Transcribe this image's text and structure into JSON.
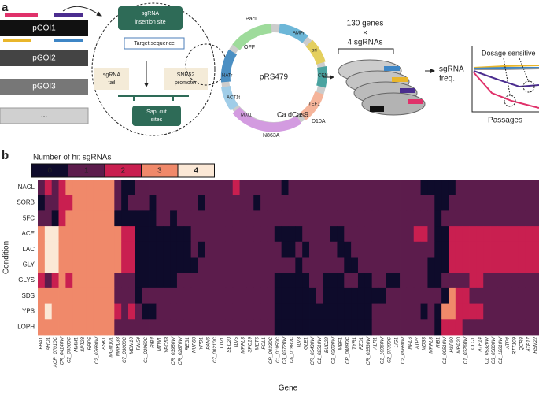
{
  "panel_a": {
    "label": "a",
    "plasmids": [
      "pGOI1",
      "pGOI2",
      "pGOI3",
      "..."
    ],
    "sgrna_site": [
      "sgRNA",
      "insertion site"
    ],
    "target": "Target sequence",
    "tail": [
      "sgRNA",
      "tail"
    ],
    "promoter": [
      "SNR52",
      "promoter"
    ],
    "cut": [
      "SapI cut",
      "sites"
    ],
    "plasmid_name": "pRS479",
    "features": [
      "PacI",
      "OFF",
      "AMPr",
      "ori",
      "CEN",
      "TEF1",
      "NATr",
      "ACT1t",
      "MXI1",
      "Ca dCas9",
      "D10A",
      "N863A"
    ],
    "pool": [
      "130 genes",
      "×",
      "4 sgRNAs"
    ],
    "y_label": [
      "sgRNA",
      "freq."
    ],
    "x_label": "Passages",
    "annotation": "Dosage sensitive"
  },
  "chart_data": {
    "type": "heatmap",
    "label": "b",
    "legend_title": "Number of hit sgRNAs",
    "levels": [
      0,
      1,
      2,
      3,
      4
    ],
    "colors": [
      "#0e0b2b",
      "#5c1c4c",
      "#c91f50",
      "#f0896a",
      "#fbe8d6"
    ],
    "rows": [
      "NACL",
      "SORB",
      "5FC",
      "ACE",
      "LAC",
      "GLY",
      "GLYS",
      "SDS",
      "YPS",
      "LOPH"
    ],
    "columns": [
      "FBA1",
      "ARO1",
      "ACR_07010C",
      "CR_04140W",
      "C2_05560C",
      "MMM1",
      "SPT23",
      "RRP5",
      "C2_07680W",
      "ASK1",
      "MGM101",
      "MRPL33",
      "C7_03000C",
      "MDM10",
      "TIM54",
      "C1_02960C",
      "RIB4",
      "MTW1",
      "YBO53",
      "CR_03950W",
      "CR_02670W",
      "REG1",
      "NUP88",
      "YPD1",
      "PAN6",
      "C7_00210C",
      "LTV1",
      "SEC20",
      "ILV5",
      "MRPL3",
      "SPC19",
      "MET6",
      "FOL1",
      "CR_00330C",
      "C1_01950C",
      "C3_03720W",
      "C6_01980C",
      "ILV3",
      "GLE1",
      "CR_03430W",
      "C1_02510W",
      "BUD22",
      "C2_02030W",
      "MBF1",
      "CR_00890C",
      "TYR1",
      "FZO1",
      "CR_03530W",
      "ALR1",
      "C1_10960W",
      "C2_07390C",
      "LIG1",
      "C2_09680W",
      "NPL6",
      "ATP7",
      "MDS3",
      "MRPL8",
      "RIB1",
      "C1_00510W",
      "HSP90",
      "MRP20",
      "C1_03260W",
      "CLC1",
      "ATP14",
      "C1_09320W",
      "C3_05800W",
      "C1_12610W",
      "ATP4",
      "RTT109",
      "QCR8",
      "ATP17",
      "RSM22"
    ],
    "values": [
      [
        1,
        2,
        1,
        2,
        3,
        3,
        3,
        3,
        3,
        3,
        3,
        1,
        0,
        0,
        1,
        1,
        1,
        1,
        1,
        1,
        1,
        1,
        1,
        1,
        1,
        1,
        1,
        1,
        2,
        1,
        1,
        1,
        1,
        1,
        1,
        0,
        1,
        1,
        1,
        1,
        1,
        1,
        1,
        1,
        1,
        1,
        1,
        1,
        1,
        1,
        1,
        1,
        1,
        1,
        1,
        0,
        0,
        0,
        0,
        0,
        1,
        1,
        1,
        1,
        1,
        1,
        1,
        1,
        1,
        1,
        1,
        1
      ],
      [
        0,
        1,
        1,
        2,
        2,
        3,
        3,
        3,
        3,
        3,
        3,
        1,
        0,
        1,
        1,
        1,
        0,
        1,
        1,
        1,
        1,
        1,
        1,
        0,
        1,
        1,
        1,
        1,
        1,
        1,
        1,
        0,
        1,
        1,
        1,
        1,
        1,
        1,
        1,
        1,
        1,
        1,
        1,
        1,
        1,
        1,
        1,
        1,
        1,
        1,
        1,
        1,
        1,
        1,
        1,
        1,
        1,
        0,
        0,
        1,
        1,
        1,
        1,
        1,
        1,
        1,
        1,
        1,
        1,
        1,
        1,
        1
      ],
      [
        1,
        1,
        0,
        2,
        3,
        3,
        3,
        3,
        3,
        3,
        3,
        0,
        0,
        0,
        0,
        0,
        0,
        1,
        1,
        0,
        1,
        1,
        1,
        1,
        1,
        1,
        1,
        1,
        1,
        1,
        1,
        1,
        1,
        1,
        1,
        1,
        1,
        1,
        1,
        1,
        1,
        1,
        1,
        1,
        1,
        1,
        1,
        1,
        1,
        1,
        1,
        1,
        1,
        1,
        1,
        1,
        1,
        0,
        1,
        1,
        1,
        1,
        1,
        1,
        1,
        1,
        1,
        1,
        1,
        1,
        1,
        1
      ],
      [
        3,
        4,
        4,
        3,
        3,
        3,
        3,
        3,
        3,
        3,
        3,
        3,
        2,
        2,
        0,
        0,
        0,
        0,
        0,
        0,
        0,
        0,
        1,
        1,
        1,
        1,
        1,
        1,
        1,
        1,
        1,
        1,
        1,
        1,
        0,
        0,
        0,
        0,
        1,
        1,
        1,
        1,
        0,
        0,
        1,
        1,
        1,
        1,
        1,
        1,
        1,
        1,
        1,
        1,
        2,
        2,
        1,
        0,
        0,
        2,
        2,
        2,
        2,
        2,
        2,
        2,
        2,
        2,
        2,
        2,
        2,
        2
      ],
      [
        3,
        4,
        4,
        3,
        3,
        3,
        3,
        3,
        3,
        3,
        3,
        3,
        2,
        2,
        0,
        0,
        0,
        0,
        0,
        0,
        0,
        0,
        1,
        0,
        1,
        1,
        1,
        1,
        1,
        1,
        1,
        1,
        1,
        1,
        1,
        0,
        0,
        1,
        0,
        1,
        1,
        1,
        1,
        0,
        0,
        1,
        1,
        1,
        1,
        1,
        1,
        1,
        1,
        1,
        1,
        1,
        1,
        0,
        0,
        2,
        2,
        2,
        2,
        2,
        2,
        2,
        2,
        2,
        2,
        2,
        2,
        2
      ],
      [
        3,
        4,
        4,
        3,
        3,
        3,
        3,
        3,
        3,
        3,
        3,
        3,
        2,
        2,
        0,
        0,
        0,
        0,
        0,
        0,
        0,
        0,
        0,
        1,
        1,
        1,
        1,
        1,
        1,
        1,
        1,
        1,
        1,
        1,
        1,
        1,
        1,
        0,
        1,
        1,
        1,
        1,
        1,
        1,
        0,
        0,
        1,
        1,
        1,
        1,
        1,
        1,
        1,
        1,
        1,
        1,
        0,
        0,
        0,
        2,
        2,
        2,
        2,
        2,
        2,
        2,
        2,
        2,
        2,
        2,
        2,
        2
      ],
      [
        2,
        1,
        2,
        3,
        2,
        3,
        3,
        3,
        3,
        3,
        3,
        1,
        1,
        1,
        0,
        0,
        0,
        0,
        0,
        0,
        1,
        1,
        1,
        1,
        1,
        1,
        1,
        1,
        1,
        1,
        1,
        1,
        1,
        1,
        0,
        0,
        0,
        0,
        0,
        1,
        1,
        0,
        0,
        0,
        1,
        1,
        0,
        0,
        1,
        1,
        0,
        0,
        1,
        1,
        1,
        1,
        0,
        0,
        1,
        1,
        1,
        1,
        2,
        2,
        1,
        1,
        1,
        1,
        1,
        1,
        1,
        1
      ],
      [
        3,
        3,
        3,
        3,
        3,
        3,
        3,
        3,
        3,
        3,
        3,
        1,
        1,
        1,
        0,
        1,
        1,
        1,
        1,
        1,
        1,
        1,
        1,
        1,
        1,
        1,
        1,
        1,
        1,
        1,
        1,
        1,
        1,
        1,
        0,
        0,
        0,
        0,
        0,
        0,
        1,
        0,
        0,
        0,
        0,
        0,
        0,
        0,
        0,
        0,
        1,
        1,
        1,
        1,
        1,
        1,
        1,
        1,
        0,
        3,
        2,
        2,
        1,
        1,
        1,
        1,
        1,
        1,
        1,
        1,
        1,
        1
      ],
      [
        3,
        4,
        3,
        3,
        3,
        3,
        3,
        3,
        3,
        3,
        3,
        2,
        1,
        2,
        1,
        0,
        0,
        1,
        1,
        1,
        1,
        1,
        1,
        1,
        1,
        1,
        1,
        1,
        1,
        1,
        1,
        1,
        1,
        1,
        0,
        0,
        0,
        0,
        0,
        0,
        0,
        0,
        0,
        0,
        0,
        0,
        0,
        0,
        1,
        1,
        1,
        1,
        1,
        1,
        1,
        0,
        1,
        0,
        3,
        3,
        2,
        2,
        2,
        2,
        1,
        1,
        1,
        1,
        1,
        1,
        1,
        1
      ],
      [
        3,
        3,
        3,
        3,
        3,
        3,
        3,
        3,
        3,
        3,
        3,
        1,
        1,
        1,
        1,
        1,
        1,
        1,
        1,
        1,
        1,
        1,
        1,
        1,
        1,
        1,
        1,
        1,
        1,
        1,
        1,
        1,
        1,
        1,
        0,
        0,
        0,
        0,
        0,
        0,
        0,
        0,
        0,
        0,
        0,
        0,
        0,
        0,
        1,
        1,
        1,
        1,
        1,
        1,
        1,
        1,
        1,
        0,
        2,
        2,
        2,
        1,
        1,
        1,
        1,
        1,
        1,
        1,
        1,
        1,
        1,
        1
      ]
    ],
    "xlabel": "Gene",
    "ylabel": "Condition"
  }
}
